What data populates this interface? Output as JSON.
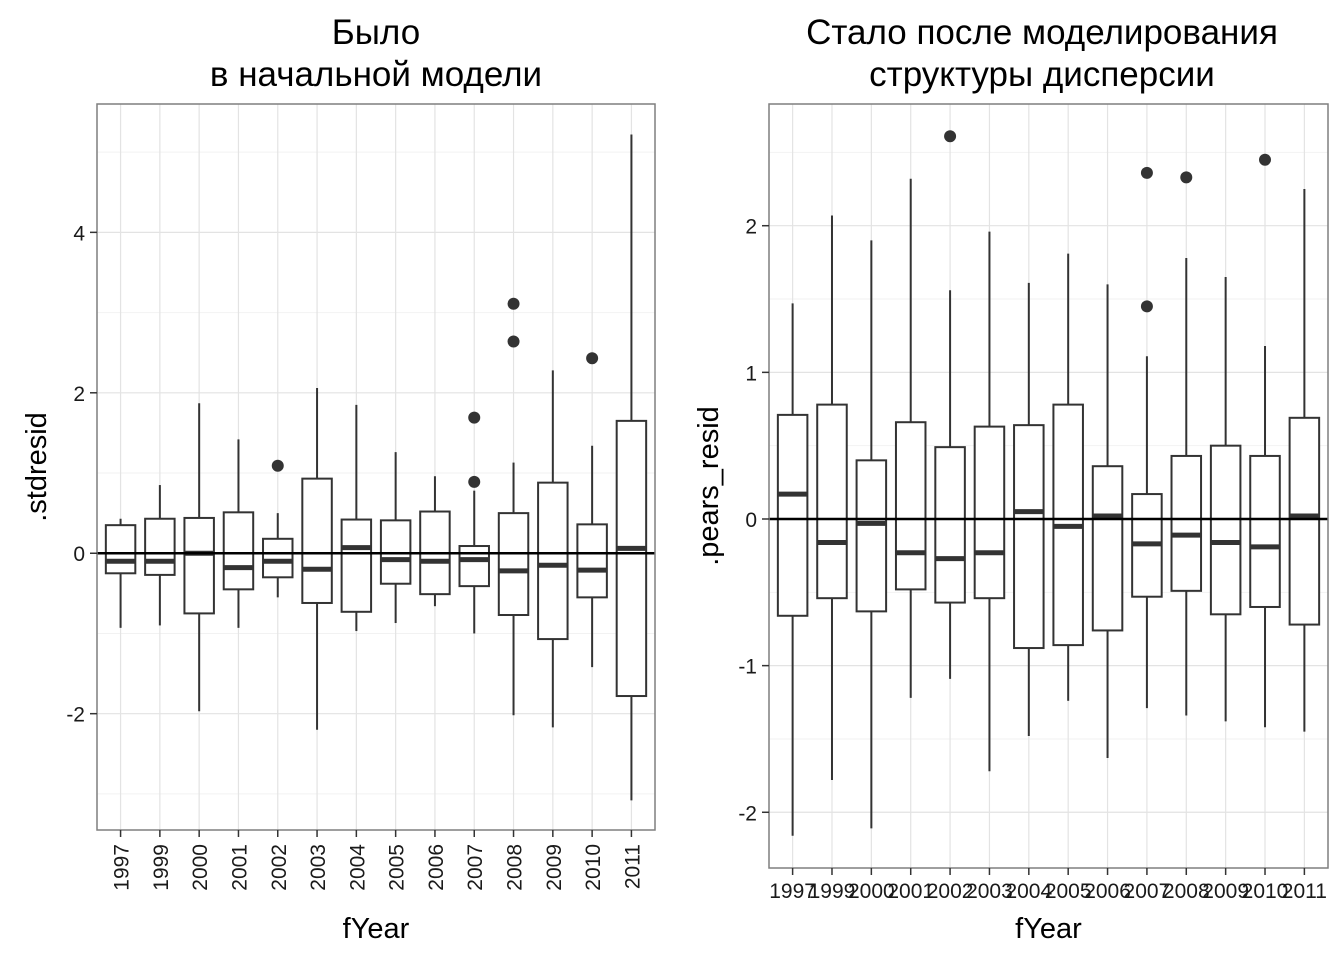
{
  "chart_data": [
    {
      "type": "boxplot",
      "title": [
        "Было",
        "в начальной модели"
      ],
      "xlabel": "fYear",
      "ylabel": ".stdresid",
      "ylim": [
        -3.45,
        5.6
      ],
      "yticks": [
        -2,
        0,
        2,
        4
      ],
      "grid": true,
      "hline": 0,
      "categories": [
        "1997",
        "1999",
        "2000",
        "2001",
        "2002",
        "2003",
        "2004",
        "2005",
        "2006",
        "2007",
        "2008",
        "2009",
        "2010",
        "2011"
      ],
      "boxes": [
        {
          "lower": -0.93,
          "q1": -0.25,
          "median": -0.1,
          "q3": 0.35,
          "upper": 0.43,
          "outliers": []
        },
        {
          "lower": -0.9,
          "q1": -0.27,
          "median": -0.1,
          "q3": 0.43,
          "upper": 0.85,
          "outliers": []
        },
        {
          "lower": -1.97,
          "q1": -0.75,
          "median": 0.0,
          "q3": 0.44,
          "upper": 1.87,
          "outliers": []
        },
        {
          "lower": -0.93,
          "q1": -0.45,
          "median": -0.18,
          "q3": 0.51,
          "upper": 1.42,
          "outliers": []
        },
        {
          "lower": -0.55,
          "q1": -0.3,
          "median": -0.1,
          "q3": 0.18,
          "upper": 0.5,
          "outliers": [
            1.09
          ]
        },
        {
          "lower": -2.2,
          "q1": -0.62,
          "median": -0.2,
          "q3": 0.93,
          "upper": 2.06,
          "outliers": []
        },
        {
          "lower": -0.97,
          "q1": -0.73,
          "median": 0.07,
          "q3": 0.42,
          "upper": 1.85,
          "outliers": []
        },
        {
          "lower": -0.87,
          "q1": -0.38,
          "median": -0.08,
          "q3": 0.41,
          "upper": 1.26,
          "outliers": []
        },
        {
          "lower": -0.66,
          "q1": -0.51,
          "median": -0.1,
          "q3": 0.52,
          "upper": 0.96,
          "outliers": []
        },
        {
          "lower": -1.0,
          "q1": -0.41,
          "median": -0.08,
          "q3": 0.09,
          "upper": 0.78,
          "outliers": [
            0.89,
            1.69
          ]
        },
        {
          "lower": -2.02,
          "q1": -0.77,
          "median": -0.22,
          "q3": 0.5,
          "upper": 1.13,
          "outliers": [
            2.64,
            3.11
          ]
        },
        {
          "lower": -2.17,
          "q1": -1.07,
          "median": -0.15,
          "q3": 0.88,
          "upper": 2.28,
          "outliers": []
        },
        {
          "lower": -1.42,
          "q1": -0.55,
          "median": -0.21,
          "q3": 0.36,
          "upper": 1.34,
          "outliers": [
            2.43
          ]
        },
        {
          "lower": -3.08,
          "q1": -1.78,
          "median": 0.06,
          "q3": 1.65,
          "upper": 5.22,
          "outliers": []
        }
      ]
    },
    {
      "type": "boxplot",
      "title": [
        "Стало после моделирования",
        "структуры дисперсии"
      ],
      "xlabel": "fYear",
      "ylabel": ".pears_resid",
      "ylim": [
        -2.38,
        2.83
      ],
      "yticks": [
        -2,
        -1,
        0,
        1,
        2
      ],
      "grid": true,
      "hline": 0,
      "categories": [
        "1997",
        "1999",
        "2000",
        "2001",
        "2002",
        "2003",
        "2004",
        "2005",
        "2006",
        "2007",
        "2008",
        "2009",
        "2010",
        "2011"
      ],
      "boxes": [
        {
          "lower": -2.16,
          "q1": -0.66,
          "median": 0.17,
          "q3": 0.71,
          "upper": 1.47,
          "outliers": []
        },
        {
          "lower": -1.78,
          "q1": -0.54,
          "median": -0.16,
          "q3": 0.78,
          "upper": 2.07,
          "outliers": []
        },
        {
          "lower": -2.11,
          "q1": -0.63,
          "median": -0.03,
          "q3": 0.4,
          "upper": 1.9,
          "outliers": []
        },
        {
          "lower": -1.22,
          "q1": -0.48,
          "median": -0.23,
          "q3": 0.66,
          "upper": 2.32,
          "outliers": []
        },
        {
          "lower": -1.09,
          "q1": -0.57,
          "median": -0.27,
          "q3": 0.49,
          "upper": 1.56,
          "outliers": [
            2.61
          ]
        },
        {
          "lower": -1.72,
          "q1": -0.54,
          "median": -0.23,
          "q3": 0.63,
          "upper": 1.96,
          "outliers": []
        },
        {
          "lower": -1.48,
          "q1": -0.88,
          "median": 0.05,
          "q3": 0.64,
          "upper": 1.61,
          "outliers": []
        },
        {
          "lower": -1.24,
          "q1": -0.86,
          "median": -0.05,
          "q3": 0.78,
          "upper": 1.81,
          "outliers": []
        },
        {
          "lower": -1.63,
          "q1": -0.76,
          "median": 0.02,
          "q3": 0.36,
          "upper": 1.6,
          "outliers": []
        },
        {
          "lower": -1.29,
          "q1": -0.53,
          "median": -0.17,
          "q3": 0.17,
          "upper": 1.11,
          "outliers": [
            1.45,
            2.36
          ]
        },
        {
          "lower": -1.34,
          "q1": -0.49,
          "median": -0.11,
          "q3": 0.43,
          "upper": 1.78,
          "outliers": [
            2.33
          ]
        },
        {
          "lower": -1.38,
          "q1": -0.65,
          "median": -0.16,
          "q3": 0.5,
          "upper": 1.65,
          "outliers": []
        },
        {
          "lower": -1.42,
          "q1": -0.6,
          "median": -0.19,
          "q3": 0.43,
          "upper": 1.18,
          "outliers": [
            2.45
          ]
        },
        {
          "lower": -1.45,
          "q1": -0.72,
          "median": 0.02,
          "q3": 0.69,
          "upper": 2.25,
          "outliers": []
        }
      ]
    }
  ]
}
